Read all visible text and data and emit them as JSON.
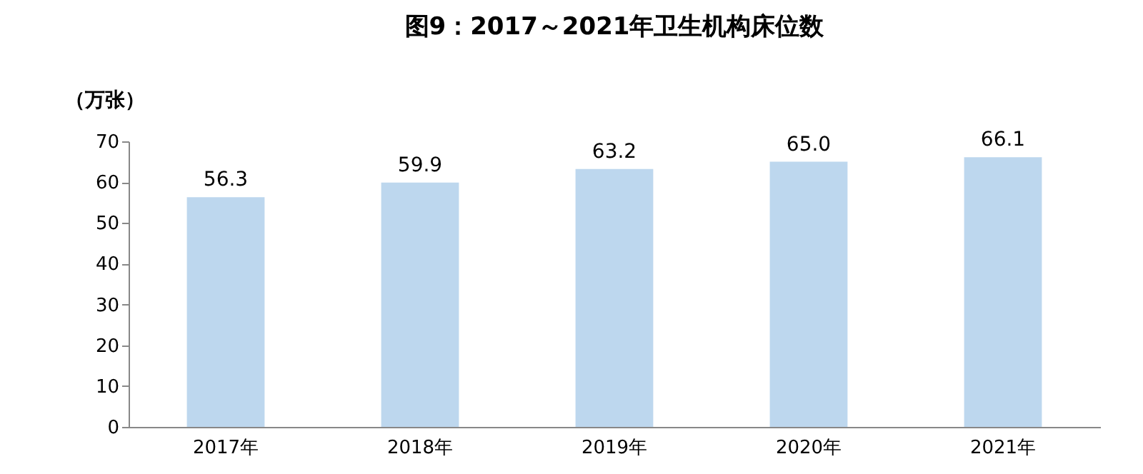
{
  "chart_data": {
    "type": "bar",
    "title": "图9：2017～2021年卫生机构床位数",
    "ylabel": "（万张）",
    "categories": [
      "2017年",
      "2018年",
      "2019年",
      "2020年",
      "2021年"
    ],
    "values": [
      56.3,
      59.9,
      63.2,
      65.0,
      66.1
    ],
    "value_labels": [
      "56.3",
      "59.9",
      "63.2",
      "65.0",
      "66.1"
    ],
    "color": "#bdd7ee",
    "ylim": [
      0,
      70
    ],
    "yticks": [
      0,
      10,
      20,
      30,
      40,
      50,
      60,
      70
    ],
    "grid": false
  }
}
